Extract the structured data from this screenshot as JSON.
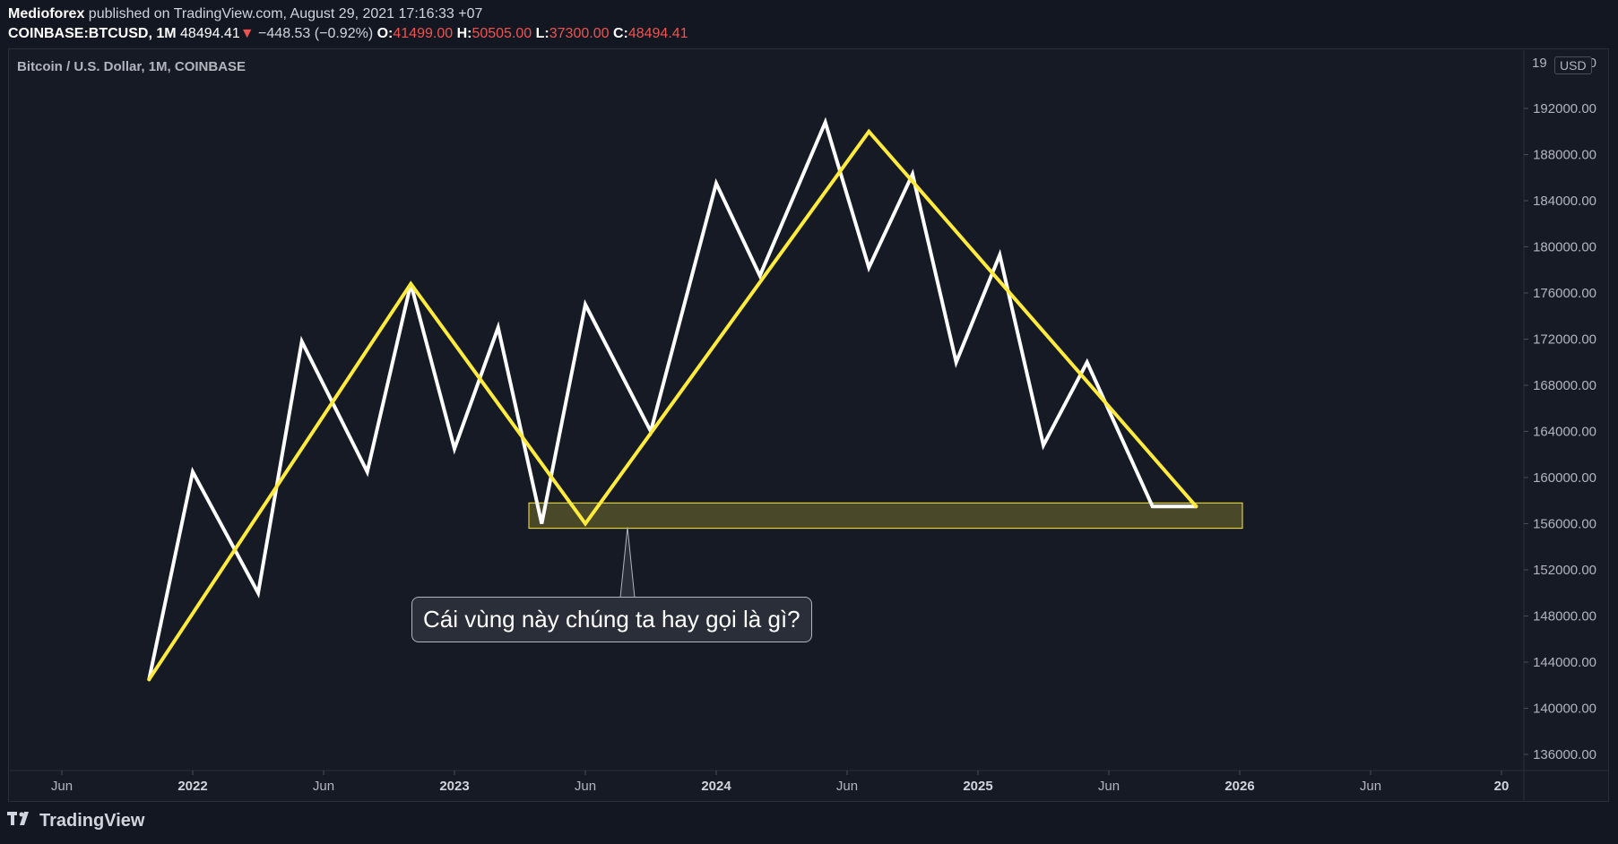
{
  "header": {
    "publisher": "Medioforex",
    "published_text": "published on TradingView.com, August 29, 2021 17:16:33 +07",
    "symbol": "COINBASE:BTCUSD, 1M",
    "price": "48494.41",
    "down_arrow": "▼",
    "change": "−448.53 (−0.92%)",
    "o_label": "O:",
    "o_value": "41499.00",
    "h_label": "H:",
    "h_value": "50505.00",
    "l_label": "L:",
    "l_value": "37300.00",
    "c_label": "C:",
    "c_value": "48494.41"
  },
  "chart_title": "Bitcoin / U.S. Dollar, 1M, COINBASE",
  "currency_badge": "USD",
  "callout_text": "Cái vùng này chúng ta hay gọi là gì?",
  "footer_brand": "TradingView",
  "chart_data": {
    "type": "line",
    "title": "Bitcoin / U.S. Dollar, 1M, COINBASE",
    "ylim": [
      134000,
      196000
    ],
    "y_ticks": [
      "136000.00",
      "140000.00",
      "144000.00",
      "148000.00",
      "152000.00",
      "156000.00",
      "160000.00",
      "164000.00",
      "168000.00",
      "172000.00",
      "176000.00",
      "180000.00",
      "184000.00",
      "188000.00",
      "192000.00"
    ],
    "y_top_partial": "19",
    "y_top_partial_suffix": "00",
    "x_ticks": [
      {
        "label": "Jun",
        "bold": false
      },
      {
        "label": "2022",
        "bold": true
      },
      {
        "label": "Jun",
        "bold": false
      },
      {
        "label": "2023",
        "bold": true
      },
      {
        "label": "Jun",
        "bold": false
      },
      {
        "label": "2024",
        "bold": true
      },
      {
        "label": "Jun",
        "bold": false
      },
      {
        "label": "2025",
        "bold": true
      },
      {
        "label": "Jun",
        "bold": false
      },
      {
        "label": "2026",
        "bold": true
      },
      {
        "label": "Jun",
        "bold": false
      },
      {
        "label": "20",
        "bold": true
      }
    ],
    "series": [
      {
        "color": "#ffffff",
        "x": [
          "2021-10",
          "2021-12",
          "2022-03",
          "2022-05",
          "2022-08",
          "2022-10",
          "2022-12",
          "2023-02",
          "2023-04",
          "2023-06",
          "2023-09",
          "2023-12",
          "2024-02",
          "2024-05",
          "2024-07",
          "2024-09",
          "2024-11",
          "2025-01",
          "2025-03",
          "2025-05",
          "2025-08",
          "2025-10"
        ],
        "y": [
          142500,
          160500,
          150000,
          171800,
          160500,
          176800,
          162500,
          173000,
          156000,
          175000,
          164000,
          185500,
          177500,
          190800,
          178200,
          186300,
          170000,
          179300,
          162800,
          170000,
          157500,
          157500
        ]
      },
      {
        "color": "#ffeb3b",
        "x": [
          "2021-10",
          "2022-10",
          "2023-06",
          "2024-07",
          "2025-10"
        ],
        "y": [
          142500,
          176800,
          156000,
          190000,
          157500
        ]
      }
    ],
    "zone": {
      "x_from": "2023-03",
      "x_to": "2025-12",
      "y_from": 155600,
      "y_to": 157800,
      "color": "#ffeb3b"
    },
    "callout": {
      "text": "Cái vùng này chúng ta hay gọi là gì?",
      "x": "2023-06",
      "y": 156000
    }
  }
}
